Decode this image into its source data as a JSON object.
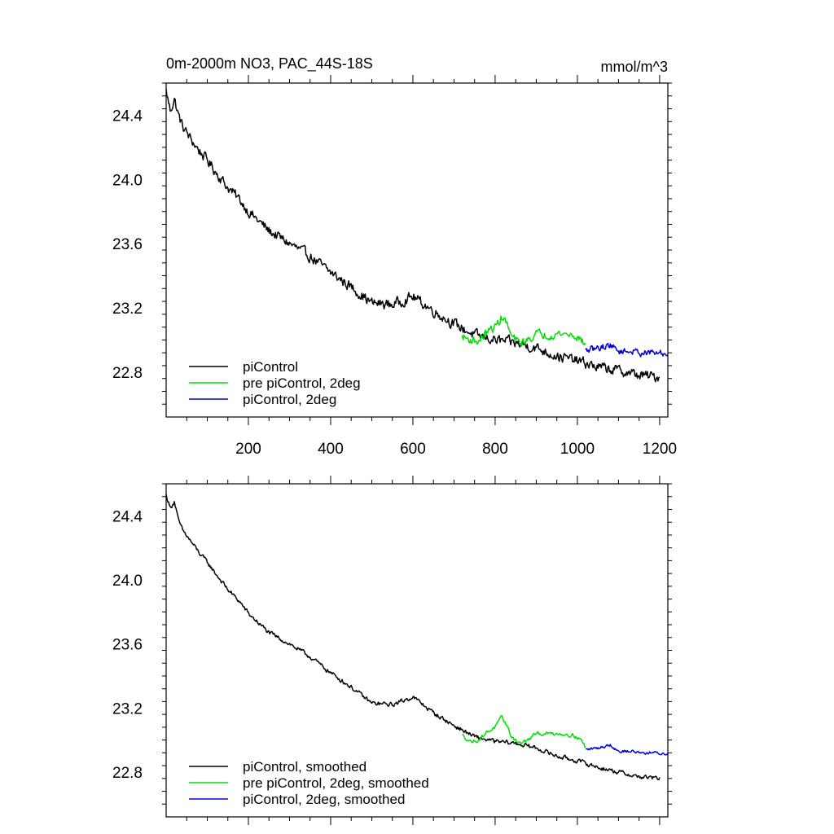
{
  "chart_data": [
    {
      "type": "line",
      "title": "0m-2000m NO3, PAC_44S-18S",
      "units": "mmol/m^3",
      "xlim": [
        0,
        1220
      ],
      "ylim": [
        22.52,
        24.6
      ],
      "x_ticks": [
        200,
        400,
        600,
        800,
        1000,
        1200
      ],
      "y_ticks": [
        22.8,
        23.2,
        23.6,
        24.0,
        24.4
      ],
      "y_tick_labels": [
        "22.8",
        "23.2",
        "23.6",
        "24.0",
        "24.4"
      ],
      "x_tick_labels": [
        "200",
        "400",
        "600",
        "800",
        "1000",
        "1200"
      ],
      "show_x_tick_labels": true,
      "legend": {
        "position": "bottom-left",
        "entries": [
          {
            "label": "piControl",
            "color": "#000000"
          },
          {
            "label": "pre piControl, 2deg",
            "color": "#00e000"
          },
          {
            "label": "piControl, 2deg",
            "color": "#0000e0"
          }
        ]
      },
      "series": [
        {
          "name": "piControl",
          "color": "#000000",
          "noise": 0.028,
          "x": [
            0,
            10,
            20,
            30,
            40,
            60,
            80,
            100,
            120,
            150,
            180,
            200,
            250,
            300,
            350,
            400,
            450,
            500,
            550,
            600,
            650,
            700,
            750,
            800,
            850,
            900,
            950,
            1000,
            1050,
            1100,
            1150,
            1200
          ],
          "y": [
            24.55,
            24.43,
            24.5,
            24.4,
            24.33,
            24.25,
            24.18,
            24.12,
            24.05,
            23.95,
            23.87,
            23.8,
            23.68,
            23.6,
            23.52,
            23.42,
            23.33,
            23.23,
            23.22,
            23.27,
            23.18,
            23.1,
            23.03,
            23.0,
            22.98,
            22.95,
            22.9,
            22.87,
            22.83,
            22.81,
            22.78,
            22.77
          ]
        },
        {
          "name": "pre piControl, 2deg",
          "color": "#00e000",
          "noise": 0.022,
          "x": [
            720,
            740,
            760,
            780,
            800,
            815,
            825,
            840,
            860,
            880,
            900,
            930,
            960,
            990,
            1010,
            1020
          ],
          "y": [
            23.02,
            23.0,
            22.99,
            23.05,
            23.08,
            23.14,
            23.12,
            23.02,
            22.98,
            23.0,
            23.04,
            23.03,
            23.04,
            23.03,
            23.0,
            22.96
          ]
        },
        {
          "name": "piControl, 2deg",
          "color": "#0000e0",
          "noise": 0.018,
          "x": [
            1020,
            1050,
            1080,
            1100,
            1130,
            1160,
            1190,
            1220
          ],
          "y": [
            22.93,
            22.95,
            22.97,
            22.93,
            22.93,
            22.92,
            22.92,
            22.91
          ]
        }
      ]
    },
    {
      "type": "line",
      "title": "",
      "units": "",
      "xlim": [
        0,
        1220
      ],
      "ylim": [
        22.52,
        24.6
      ],
      "x_ticks": [
        200,
        400,
        600,
        800,
        1000,
        1200
      ],
      "y_ticks": [
        22.8,
        23.2,
        23.6,
        24.0,
        24.4
      ],
      "y_tick_labels": [
        "22.8",
        "23.2",
        "23.6",
        "24.0",
        "24.4"
      ],
      "x_tick_labels": [],
      "show_x_tick_labels": false,
      "legend": {
        "position": "bottom-left",
        "entries": [
          {
            "label": "piControl, smoothed",
            "color": "#000000"
          },
          {
            "label": "pre piControl, 2deg, smoothed",
            "color": "#00e000"
          },
          {
            "label": "piControl, 2deg, smoothed",
            "color": "#0000e0"
          }
        ]
      },
      "series": [
        {
          "name": "piControl, smoothed",
          "color": "#000000",
          "noise": 0.012,
          "x": [
            0,
            10,
            20,
            30,
            40,
            60,
            80,
            100,
            120,
            150,
            180,
            200,
            250,
            300,
            350,
            400,
            450,
            500,
            550,
            600,
            650,
            700,
            750,
            800,
            850,
            900,
            950,
            1000,
            1050,
            1100,
            1150,
            1200
          ],
          "y": [
            24.53,
            24.45,
            24.49,
            24.37,
            24.31,
            24.24,
            24.17,
            24.11,
            24.04,
            23.94,
            23.86,
            23.79,
            23.67,
            23.6,
            23.52,
            23.42,
            23.33,
            23.23,
            23.22,
            23.27,
            23.17,
            23.09,
            23.02,
            22.99,
            22.98,
            22.95,
            22.9,
            22.87,
            22.83,
            22.8,
            22.77,
            22.76
          ]
        },
        {
          "name": "pre piControl, 2deg, smoothed",
          "color": "#00e000",
          "noise": 0.01,
          "x": [
            720,
            740,
            760,
            780,
            800,
            815,
            825,
            840,
            860,
            880,
            900,
            930,
            960,
            990,
            1010,
            1020
          ],
          "y": [
            23.03,
            22.99,
            23.0,
            23.05,
            23.08,
            23.14,
            23.11,
            23.02,
            22.98,
            23.0,
            23.04,
            23.04,
            23.04,
            23.03,
            23.0,
            22.95
          ]
        },
        {
          "name": "piControl, 2deg, smoothed",
          "color": "#0000e0",
          "noise": 0.008,
          "x": [
            1020,
            1050,
            1080,
            1100,
            1130,
            1160,
            1190,
            1220
          ],
          "y": [
            22.94,
            22.95,
            22.97,
            22.93,
            22.93,
            22.92,
            22.92,
            22.91
          ]
        }
      ]
    }
  ]
}
